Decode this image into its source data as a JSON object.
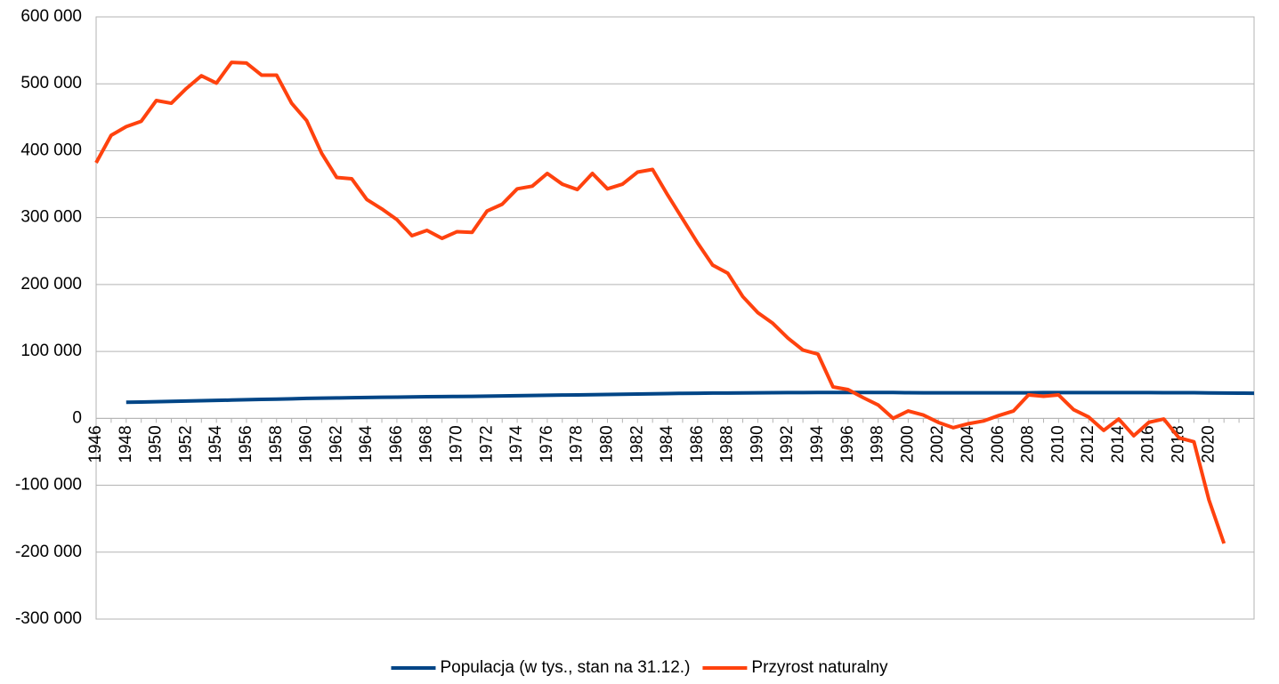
{
  "chart_data": {
    "type": "line",
    "categories": [
      "1946",
      null,
      "1948",
      null,
      "1950",
      null,
      "1952",
      null,
      "1954",
      null,
      "1956",
      null,
      "1958",
      null,
      "1960",
      null,
      "1962",
      null,
      "1964",
      null,
      "1966",
      null,
      "1968",
      null,
      "1970",
      null,
      "1972",
      null,
      "1974",
      null,
      "1976",
      null,
      "1978",
      null,
      "1980",
      null,
      "1982",
      null,
      "1984",
      null,
      "1986",
      null,
      "1988",
      null,
      "1990",
      null,
      "1992",
      null,
      "1994",
      null,
      "1996",
      null,
      "1998",
      null,
      "2000",
      null,
      "2002",
      null,
      "2004",
      null,
      "2006",
      null,
      "2008",
      null,
      "2010",
      null,
      "2012",
      null,
      "2014",
      null,
      "2016",
      null,
      "2018",
      null,
      "2020",
      null,
      null,
      null
    ],
    "series": [
      {
        "name": "Populacja (w tys., stan na 31.12.)",
        "color": "#004586",
        "values": [
          null,
          null,
          23980,
          24410,
          24824,
          25300,
          25800,
          26300,
          26800,
          27281,
          27815,
          28310,
          28770,
          29240,
          29795,
          30133,
          30488,
          30850,
          31160,
          31496,
          31698,
          31944,
          32305,
          32555,
          32658,
          32909,
          33202,
          33512,
          33846,
          34185,
          34528,
          34850,
          35060,
          35413,
          35735,
          36062,
          36399,
          36745,
          37063,
          37341,
          37572,
          37764,
          37885,
          38038,
          38183,
          38309,
          38418,
          38505,
          38581,
          38609,
          38639,
          38660,
          38667,
          38654,
          38254,
          38242,
          38219,
          38191,
          38174,
          38157,
          38125,
          38116,
          38136,
          38530,
          38538,
          38533,
          38496,
          38479,
          38437,
          38433,
          38434,
          38411,
          38383,
          38265,
          38080,
          37766,
          37636,
          37560
        ]
      },
      {
        "name": "Przyrost naturalny",
        "color": "#ff420e",
        "values": [
          382000,
          423000,
          436000,
          444000,
          475000,
          471000,
          493000,
          512000,
          501000,
          532000,
          531000,
          513000,
          513000,
          471000,
          445000,
          396000,
          360000,
          358000,
          327000,
          313000,
          297000,
          273000,
          281000,
          269000,
          279000,
          278000,
          310000,
          320000,
          343000,
          347000,
          366000,
          350000,
          342000,
          366000,
          343000,
          350000,
          368000,
          372000,
          334000,
          298000,
          262000,
          229000,
          217000,
          182000,
          158000,
          142000,
          120000,
          102000,
          96000,
          47000,
          43000,
          31000,
          20000,
          0,
          11000,
          5000,
          -6000,
          -14000,
          -8000,
          -4000,
          4000,
          11000,
          35000,
          33000,
          35000,
          13000,
          2000,
          -18000,
          -1000,
          -26000,
          -6000,
          -1000,
          -29000,
          -35000,
          -122000,
          -187000,
          null,
          null
        ]
      }
    ],
    "ylim": [
      -300000,
      600000
    ],
    "yticks": [
      {
        "value": -300000,
        "label": "-300 000"
      },
      {
        "value": -200000,
        "label": "-200 000"
      },
      {
        "value": -100000,
        "label": "-100 000"
      },
      0,
      {
        "value": 100000,
        "label": "100 000"
      },
      {
        "value": 200000,
        "label": "200 000"
      },
      {
        "value": 300000,
        "label": "300 000"
      },
      {
        "value": 400000,
        "label": "400 000"
      },
      {
        "value": 500000,
        "label": "500 000"
      },
      {
        "value": 600000,
        "label": "600 000"
      }
    ],
    "grid": true,
    "legend": "bottom"
  }
}
